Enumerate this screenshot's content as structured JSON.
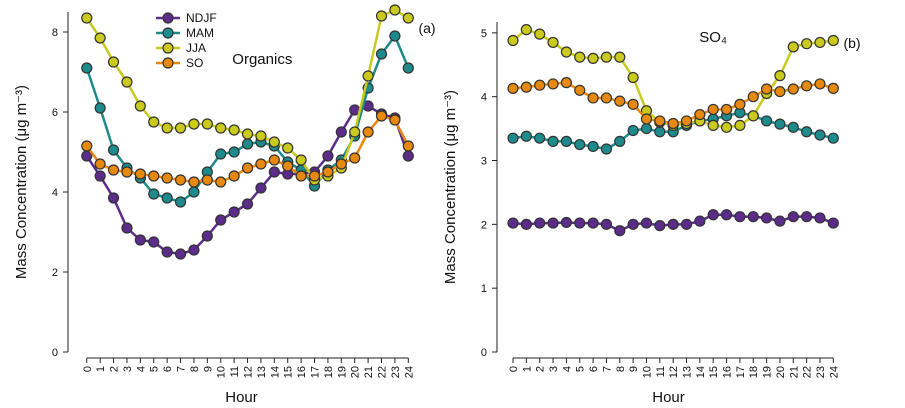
{
  "chart_data": [
    {
      "type": "line",
      "title": "Organics",
      "panel_label": "(a)",
      "x_label": "Hour",
      "y_label": "Mass Concentration (μg m⁻³)",
      "x": [
        0,
        1,
        2,
        3,
        4,
        5,
        6,
        7,
        8,
        9,
        10,
        11,
        12,
        13,
        14,
        15,
        16,
        17,
        18,
        19,
        20,
        21,
        22,
        23,
        24
      ],
      "xlim": [
        -1.4,
        24.5
      ],
      "xticks": [
        0,
        1,
        2,
        3,
        4,
        5,
        6,
        7,
        8,
        9,
        10,
        11,
        12,
        13,
        14,
        15,
        16,
        17,
        18,
        19,
        20,
        21,
        22,
        23,
        24
      ],
      "ylim": [
        0,
        8.5
      ],
      "yticks": [
        0,
        2,
        4,
        6,
        8
      ],
      "legend": "upper left",
      "series": [
        {
          "name": "NDJF",
          "color": "#5b2c8a",
          "values": [
            4.9,
            4.4,
            3.85,
            3.1,
            2.8,
            2.75,
            2.5,
            2.45,
            2.55,
            2.9,
            3.3,
            3.5,
            3.7,
            4.1,
            4.5,
            4.45,
            4.45,
            4.5,
            4.9,
            5.5,
            6.05,
            6.15,
            5.95,
            5.85,
            4.9
          ]
        },
        {
          "name": "MAM",
          "color": "#1d8b8b",
          "values": [
            7.1,
            6.1,
            5.05,
            4.6,
            4.35,
            3.95,
            3.85,
            3.75,
            4.0,
            4.5,
            4.95,
            5.0,
            5.2,
            5.25,
            5.15,
            4.75,
            4.55,
            4.15,
            4.55,
            4.8,
            5.4,
            6.6,
            7.45,
            7.9,
            7.1
          ]
        },
        {
          "name": "JJA",
          "color": "#c9c91e",
          "values": [
            8.35,
            7.85,
            7.25,
            6.75,
            6.15,
            5.75,
            5.6,
            5.6,
            5.7,
            5.7,
            5.6,
            5.55,
            5.45,
            5.4,
            5.25,
            5.1,
            4.8,
            4.3,
            4.4,
            4.6,
            5.5,
            6.9,
            8.4,
            8.55,
            8.35
          ]
        },
        {
          "name": "SO",
          "color": "#e8890f",
          "values": [
            5.15,
            4.7,
            4.55,
            4.5,
            4.45,
            4.4,
            4.35,
            4.3,
            4.25,
            4.3,
            4.25,
            4.4,
            4.6,
            4.7,
            4.8,
            4.65,
            4.4,
            4.4,
            4.5,
            4.7,
            4.85,
            5.5,
            5.9,
            5.8,
            5.15
          ]
        }
      ]
    },
    {
      "type": "line",
      "title": "SO₄",
      "panel_label": "(b)",
      "x_label": "Hour",
      "y_label": "Mass Concentration (μg m⁻³)",
      "x": [
        0,
        1,
        2,
        3,
        4,
        5,
        6,
        7,
        8,
        9,
        10,
        11,
        12,
        13,
        14,
        15,
        16,
        17,
        18,
        19,
        20,
        21,
        22,
        23,
        24
      ],
      "xlim": [
        -1.2,
        24.5
      ],
      "xticks": [
        0,
        1,
        2,
        3,
        4,
        5,
        6,
        7,
        8,
        9,
        10,
        11,
        12,
        13,
        14,
        15,
        16,
        17,
        18,
        19,
        20,
        21,
        22,
        23,
        24
      ],
      "ylim": [
        0,
        5.17
      ],
      "yticks": [
        0,
        1,
        2,
        3,
        4,
        5
      ],
      "series": [
        {
          "name": "NDJF",
          "color": "#5b2c8a",
          "values": [
            2.02,
            2.0,
            2.02,
            2.02,
            2.03,
            2.02,
            2.02,
            2.0,
            1.9,
            2.0,
            2.02,
            1.98,
            2.0,
            2.0,
            2.05,
            2.15,
            2.15,
            2.12,
            2.12,
            2.1,
            2.05,
            2.12,
            2.12,
            2.1,
            2.02
          ]
        },
        {
          "name": "MAM",
          "color": "#1d8b8b",
          "values": [
            3.35,
            3.38,
            3.35,
            3.3,
            3.3,
            3.25,
            3.22,
            3.18,
            3.3,
            3.47,
            3.5,
            3.45,
            3.45,
            3.55,
            3.62,
            3.65,
            3.7,
            3.75,
            3.7,
            3.62,
            3.57,
            3.52,
            3.45,
            3.4,
            3.35
          ]
        },
        {
          "name": "JJA",
          "color": "#c9c91e",
          "values": [
            4.88,
            5.05,
            4.98,
            4.85,
            4.7,
            4.62,
            4.6,
            4.62,
            4.62,
            4.3,
            3.78,
            3.6,
            3.55,
            3.58,
            3.62,
            3.55,
            3.52,
            3.55,
            3.7,
            4.05,
            4.33,
            4.78,
            4.83,
            4.85,
            4.88
          ]
        },
        {
          "name": "SO",
          "color": "#e8890f",
          "values": [
            4.13,
            4.15,
            4.18,
            4.2,
            4.22,
            4.1,
            3.98,
            3.98,
            3.93,
            3.88,
            3.65,
            3.62,
            3.58,
            3.62,
            3.72,
            3.8,
            3.8,
            3.88,
            4.0,
            4.12,
            4.08,
            4.12,
            4.17,
            4.2,
            4.13
          ]
        }
      ]
    }
  ]
}
